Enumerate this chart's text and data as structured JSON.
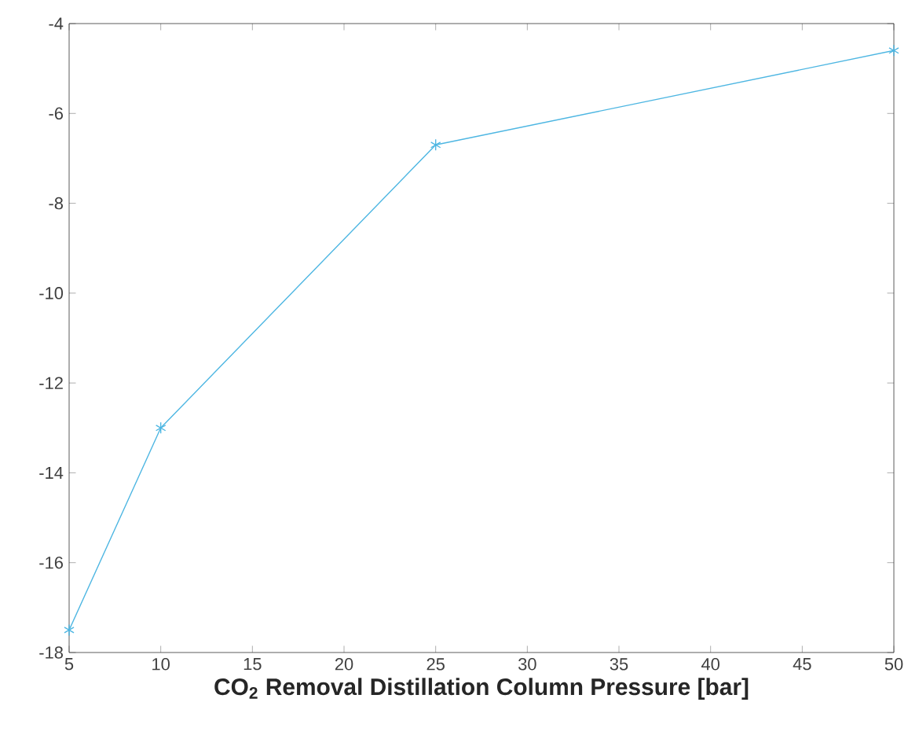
{
  "chart_data": {
    "type": "line",
    "xlabel": "CO$_{2}$ Removal Distillation Column Pressure [bar]",
    "x": [
      5,
      10,
      25,
      50
    ],
    "series": [
      {
        "color": "#4db6e2",
        "values": [
          -17.5,
          -13.0,
          -6.7,
          -4.6
        ]
      }
    ],
    "marker": "cross",
    "line_style": "solid",
    "xlim": [
      5,
      50
    ],
    "xticks": [
      5,
      10,
      15,
      20,
      25,
      30,
      35,
      40,
      45,
      50
    ],
    "ylim": [
      -18,
      -4
    ],
    "yticks": [
      -18,
      -16,
      -14,
      -12,
      -10,
      -8,
      -6,
      -4
    ]
  }
}
